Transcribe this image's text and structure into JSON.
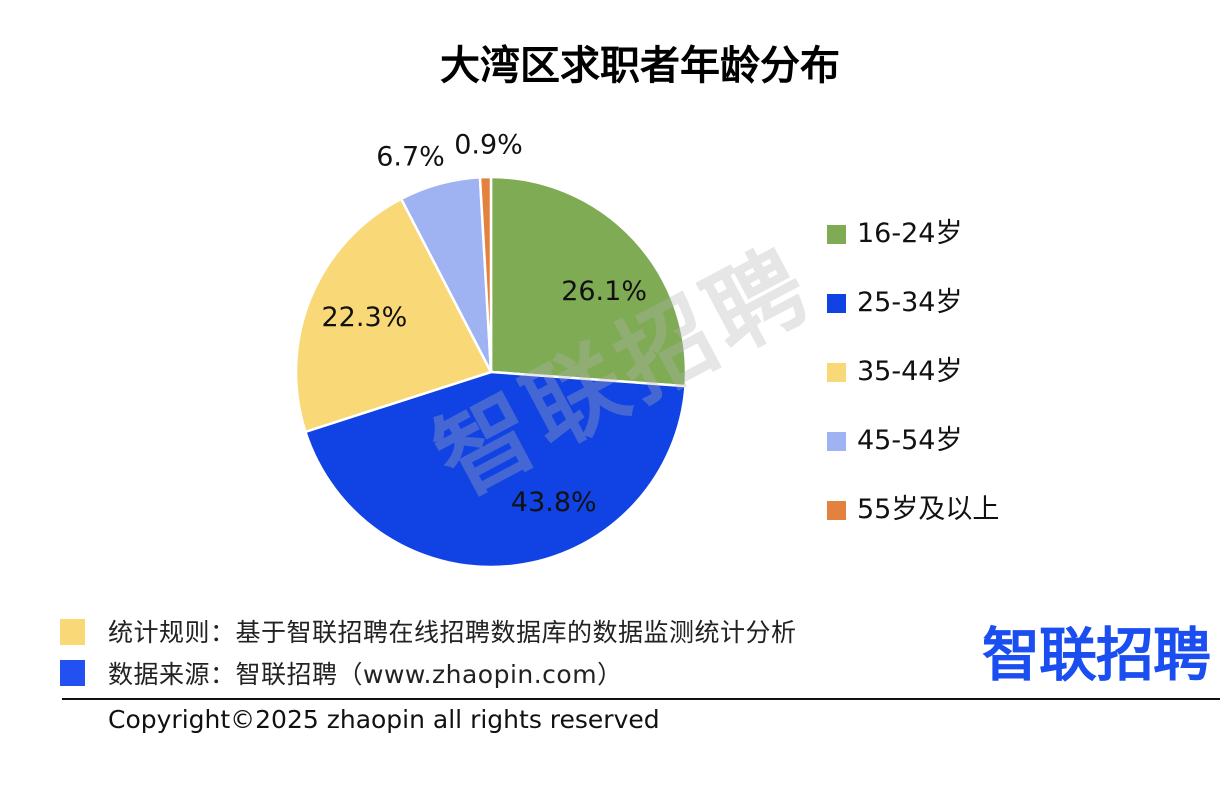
{
  "chart_data": {
    "type": "pie",
    "title": "大湾区求职者年龄分布",
    "categories": [
      "16-24岁",
      "25-34岁",
      "35-44岁",
      "45-54岁",
      "55岁及以上"
    ],
    "values": [
      26.1,
      43.8,
      22.3,
      6.7,
      0.9
    ],
    "data_labels": [
      "26.1%",
      "43.8%",
      "22.3%",
      "6.7%",
      "0.9%"
    ],
    "colors": [
      "#7fab54",
      "#1042e4",
      "#f8d877",
      "#9fb3f2",
      "#e3813f"
    ],
    "legend": "right"
  },
  "watermark": {
    "text": "智联招聘"
  },
  "footer": {
    "rule": {
      "text": "统计规则：基于智联招聘在线招聘数据库的数据监测统计分析",
      "marker_color": "#f8d877"
    },
    "source": {
      "text": "数据来源：智联招聘（www.zhaopin.com）",
      "marker_color": "#2350f0"
    },
    "logo": {
      "text": "智联招聘",
      "color": "#1b4ef0"
    },
    "copyright": "Copyright©2025 zhaopin all rights reserved"
  }
}
